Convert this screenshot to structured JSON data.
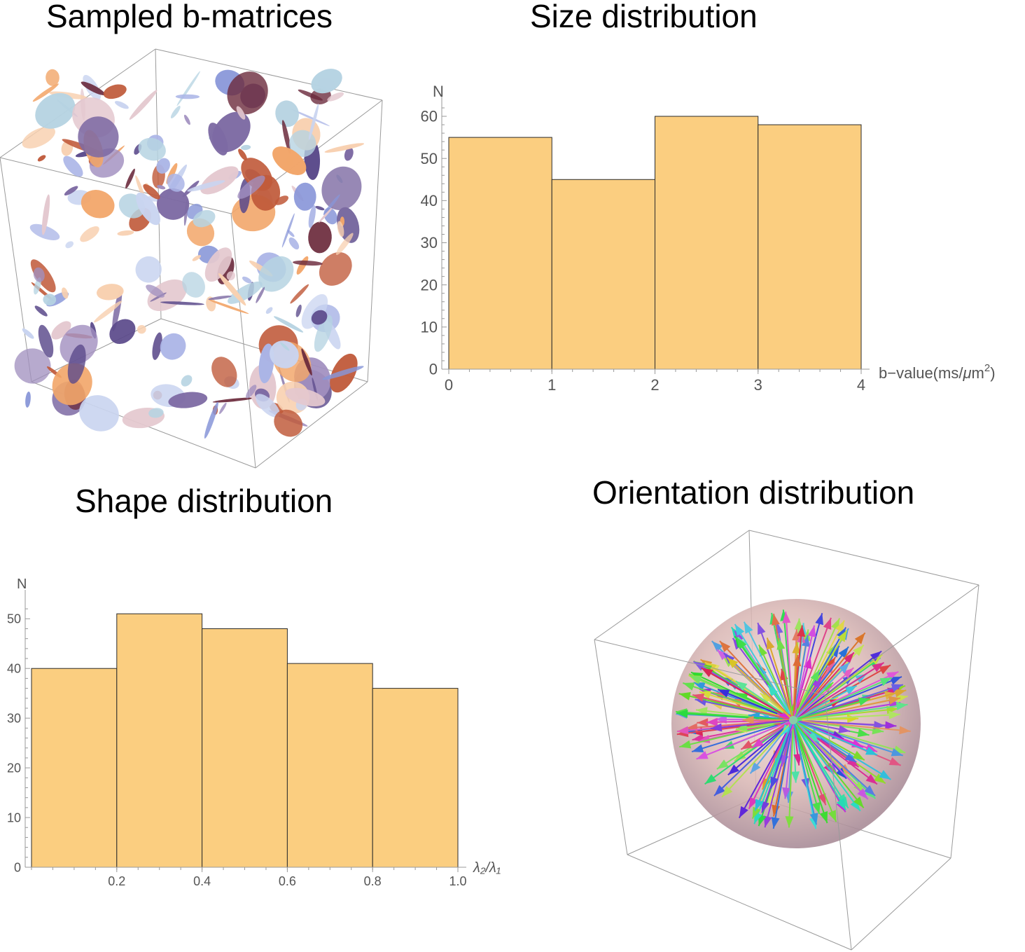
{
  "titles": {
    "matrices": "Sampled b-matrices",
    "size": "Size distribution",
    "shape": "Shape distribution",
    "orientation": "Orientation distribution"
  },
  "chart_data": [
    {
      "type": "scatter3d",
      "title": "Sampled b-matrices",
      "description_kind": "3D box filled with randomly oriented ellipsoids (b-tensor glyphs)",
      "colors": [
        "#5b4a8b",
        "#7d6aa3",
        "#a18fbf",
        "#8896d8",
        "#aab4e6",
        "#c9d4f0",
        "#6b2a3c",
        "#c05a3a",
        "#f2a66a",
        "#f8d0b0",
        "#b6d3e2",
        "#e4c8cf"
      ]
    },
    {
      "type": "bar",
      "title": "Size distribution",
      "bins": [
        [
          0,
          1
        ],
        [
          1,
          2
        ],
        [
          2,
          3
        ],
        [
          3,
          4
        ]
      ],
      "values": [
        55,
        45,
        60,
        58
      ],
      "xlabel": "b−value(ms/μm²)",
      "xlabel_main": "b−value(ms/",
      "xlabel_mu": "μ",
      "xlabel_rest": "m",
      "xlabel_sup": "2",
      "xlabel_close": ")",
      "ylabel": "N",
      "xticks": [
        "0",
        "1",
        "2",
        "3",
        "4"
      ],
      "yticks": [
        "0",
        "10",
        "20",
        "30",
        "40",
        "50",
        "60"
      ],
      "xlim": [
        0,
        4
      ],
      "ylim": [
        0,
        62
      ],
      "bar_color": "#fbce80"
    },
    {
      "type": "bar",
      "title": "Shape distribution",
      "bins": [
        [
          0,
          0.2
        ],
        [
          0.2,
          0.4
        ],
        [
          0.4,
          0.6
        ],
        [
          0.6,
          0.8
        ],
        [
          0.8,
          1.0
        ]
      ],
      "values": [
        40,
        51,
        48,
        41,
        36
      ],
      "xlabel": "λ₂/λ₁",
      "ylabel": "N",
      "xticks": [
        "0.2",
        "0.4",
        "0.6",
        "0.8",
        "1.0"
      ],
      "yticks": [
        "0",
        "10",
        "20",
        "30",
        "40",
        "50"
      ],
      "xlim": [
        0,
        1
      ],
      "ylim": [
        0,
        53
      ],
      "bar_color": "#fbce80"
    },
    {
      "type": "vector3d",
      "title": "Orientation distribution",
      "description_kind": "Unit vectors radiating from center of a translucent sphere inside a 3D box",
      "n_vectors": 218
    }
  ]
}
